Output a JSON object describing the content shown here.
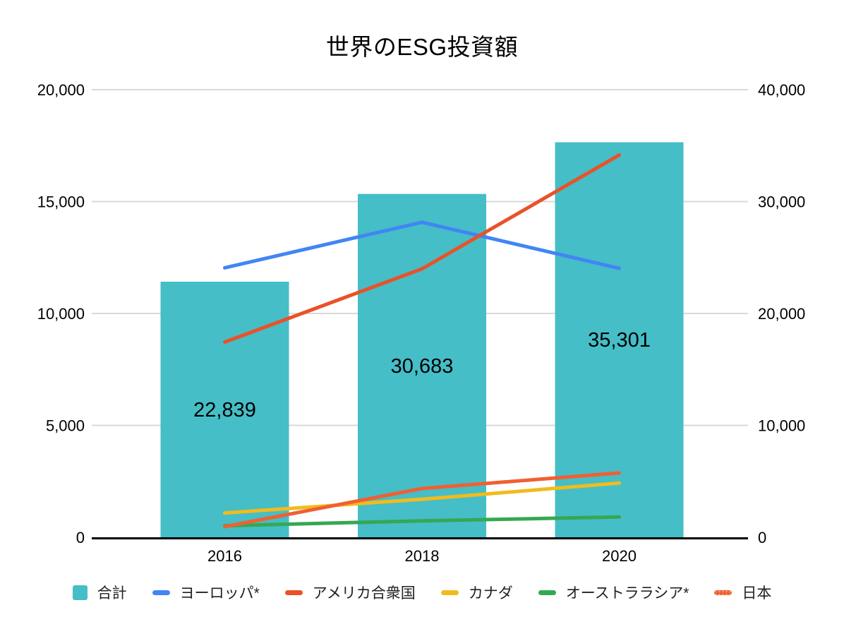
{
  "title": "世界のESG投資額",
  "chart_data": {
    "type": "combo-bar-line",
    "title": "世界のESG投資額",
    "categories": [
      "2016",
      "2018",
      "2020"
    ],
    "bar_series": {
      "id": "total",
      "name": "合計",
      "axis": "right",
      "color": "#45BEC7",
      "values": [
        22839,
        30683,
        35301
      ],
      "data_labels": [
        "22,839",
        "30,683",
        "35,301"
      ],
      "data_label_color": "#000000"
    },
    "line_series": [
      {
        "id": "europe",
        "name": "ヨーロッパ*",
        "axis": "left",
        "color": "#4285F4",
        "values": [
          12040,
          14075,
          12017
        ]
      },
      {
        "id": "usa",
        "name": "アメリカ合衆国",
        "axis": "left",
        "color": "#E95228",
        "values": [
          8723,
          11995,
          17081
        ]
      },
      {
        "id": "canada",
        "name": "カナダ",
        "axis": "left",
        "color": "#F2BB1D",
        "values": [
          1086,
          1699,
          2423
        ]
      },
      {
        "id": "australasia",
        "name": "オーストララシア*",
        "axis": "left",
        "color": "#34A853",
        "values": [
          516,
          734,
          906
        ]
      },
      {
        "id": "japan",
        "name": "日本",
        "axis": "left",
        "color": "#F06031",
        "values": [
          474,
          2180,
          2874
        ],
        "texture": "dotted"
      }
    ],
    "left_axis": {
      "min": 0,
      "max": 20000,
      "tick_labels": [
        "0",
        "5,000",
        "10,000",
        "15,000",
        "20,000"
      ]
    },
    "right_axis": {
      "min": 0,
      "max": 40000,
      "tick_labels": [
        "0",
        "10,000",
        "20,000",
        "30,000",
        "40,000"
      ]
    },
    "grid": true,
    "gridline_color": "#d9d9d9",
    "axis_line_color": "#000000",
    "tick_label_color": "#000000",
    "legend_position": "bottom"
  },
  "legend": {
    "items": [
      {
        "id": "total",
        "label": "合計",
        "swatch": "square",
        "color": "#45BEC7"
      },
      {
        "id": "europe",
        "label": "ヨーロッパ*",
        "swatch": "line",
        "color": "#4285F4"
      },
      {
        "id": "usa",
        "label": "アメリカ合衆国",
        "swatch": "line",
        "color": "#E95228"
      },
      {
        "id": "canada",
        "label": "カナダ",
        "swatch": "line",
        "color": "#F2BB1D"
      },
      {
        "id": "australasia",
        "label": "オーストララシア*",
        "swatch": "line",
        "color": "#34A853"
      },
      {
        "id": "japan",
        "label": "日本",
        "swatch": "line-dotted",
        "color": "#F06031"
      }
    ]
  }
}
